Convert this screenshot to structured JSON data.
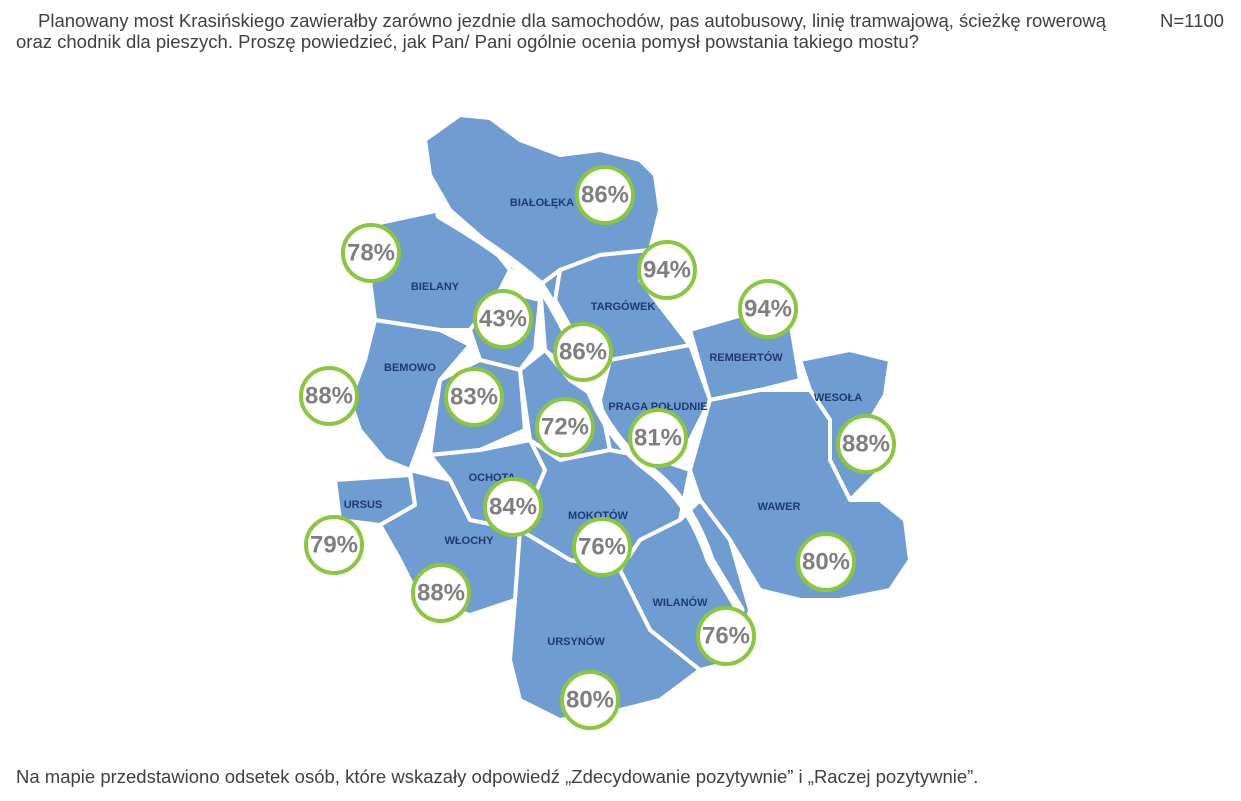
{
  "header": {
    "question": "Planowany most Krasińskiego zawierałby zarówno jezdnie dla samochodów, pas autobusowy, linię tramwajową, ścieżkę rowerową oraz chodnik dla pieszych. Proszę powiedzieć, jak Pan/ Pani ogólnie ocenia pomysł powstania takiego mostu?",
    "sample": "N=1100"
  },
  "districts": [
    "BIAŁOŁĘKA",
    "BIELANY",
    "TARGÓWEK",
    "REMBERTÓW",
    "BEMOWO",
    "WESOŁA",
    "PRAGA POŁUDNIE",
    "WAWER",
    "OCHOTA",
    "MOKOTÓW",
    "URSUS",
    "WŁOCHY",
    "WILANÓW",
    "URSYNÓW"
  ],
  "percentages": [
    "86%",
    "78%",
    "94%",
    "94%",
    "43%",
    "86%",
    "88%",
    "83%",
    "72%",
    "81%",
    "88%",
    "84%",
    "79%",
    "76%",
    "80%",
    "88%",
    "76%",
    "80%"
  ],
  "footer": "Na mapie przedstawiono odsetek osób, które wskazały odpowiedź „Zdecydowanie pozytywnie” i „Raczej pozytywnie”."
}
